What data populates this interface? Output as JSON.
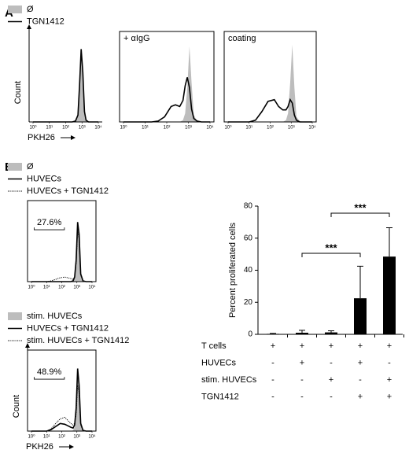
{
  "panels": [
    "A",
    "B"
  ],
  "chart_data": [
    {
      "type": "histogram-overlay",
      "ylabel": "Count",
      "xlabel": "PKH26",
      "log_x": true,
      "x": [
        1,
        3.2,
        10,
        20,
        40,
        79,
        158,
        251,
        398,
        562,
        708,
        891,
        1122,
        1413,
        1778,
        2512,
        3981,
        10000
      ],
      "xlim": [
        1,
        10000
      ],
      "ylim": [
        0,
        100
      ],
      "xticks": [
        {
          "value": 1,
          "label": "10⁰"
        },
        {
          "value": 10,
          "label": "10¹"
        },
        {
          "value": 100,
          "label": "10²"
        },
        {
          "value": 1000,
          "label": "10³"
        },
        {
          "value": 10000,
          "label": "10⁴"
        }
      ],
      "series": [
        {
          "name": "Ø",
          "color": "#bdbdbd",
          "fill": true,
          "values": [
            0,
            0,
            0,
            0,
            0,
            0,
            0,
            0,
            1,
            8,
            40,
            80,
            55,
            12,
            2,
            0,
            0,
            0
          ]
        },
        {
          "name": "TGN1412",
          "color": "#000000",
          "dash": "solid",
          "values": [
            0,
            0,
            0,
            0,
            0,
            0,
            0,
            0,
            1,
            8,
            42,
            85,
            58,
            12,
            2,
            0,
            0,
            0
          ]
        }
      ]
    },
    {
      "type": "histogram-overlay",
      "annotation": "+ αIgG",
      "log_x": true,
      "x": [
        1,
        3.2,
        10,
        20,
        40,
        79,
        158,
        251,
        398,
        562,
        708,
        891,
        1122,
        1413,
        1778,
        2512,
        3981,
        10000
      ],
      "xlim": [
        1,
        10000
      ],
      "ylim": [
        0,
        100
      ],
      "xticks": [
        {
          "value": 1,
          "label": "10⁰"
        },
        {
          "value": 10,
          "label": "10¹"
        },
        {
          "value": 100,
          "label": "10²"
        },
        {
          "value": 1000,
          "label": "10³"
        },
        {
          "value": 10000,
          "label": "10⁴"
        }
      ],
      "series": [
        {
          "color": "#bdbdbd",
          "fill": true,
          "values": [
            0,
            0,
            0,
            0,
            0,
            0,
            0,
            0,
            0,
            2,
            10,
            40,
            88,
            45,
            8,
            1,
            0,
            0
          ]
        },
        {
          "color": "#000000",
          "dash": "solid",
          "values": [
            0,
            0,
            0,
            0,
            1,
            6,
            18,
            20,
            18,
            25,
            42,
            52,
            40,
            15,
            4,
            1,
            0,
            0
          ]
        }
      ]
    },
    {
      "type": "histogram-overlay",
      "annotation": "coating",
      "log_x": true,
      "x": [
        1,
        3.2,
        10,
        20,
        40,
        79,
        158,
        251,
        398,
        562,
        708,
        891,
        1122,
        1413,
        1778,
        2512,
        3981,
        10000
      ],
      "xlim": [
        1,
        10000
      ],
      "ylim": [
        0,
        100
      ],
      "xticks": [
        {
          "value": 1,
          "label": "10⁰"
        },
        {
          "value": 10,
          "label": "10¹"
        },
        {
          "value": 100,
          "label": "10²"
        },
        {
          "value": 1000,
          "label": "10³"
        },
        {
          "value": 10000,
          "label": "10⁴"
        }
      ],
      "series": [
        {
          "color": "#bdbdbd",
          "fill": true,
          "values": [
            0,
            0,
            0,
            0,
            0,
            0,
            0,
            0,
            0,
            2,
            10,
            45,
            90,
            40,
            6,
            1,
            0,
            0
          ]
        },
        {
          "color": "#000000",
          "dash": "solid",
          "values": [
            0,
            0,
            0,
            2,
            12,
            24,
            26,
            18,
            14,
            14,
            18,
            26,
            22,
            8,
            2,
            0,
            0,
            0
          ]
        }
      ]
    },
    {
      "type": "histogram-overlay",
      "log_x": true,
      "x": [
        1,
        3.2,
        10,
        20,
        40,
        79,
        158,
        251,
        398,
        562,
        708,
        891,
        1122,
        1413,
        1778,
        2512,
        3981,
        10000
      ],
      "xlim": [
        1,
        10000
      ],
      "ylim": [
        0,
        100
      ],
      "xticks": [
        {
          "value": 1,
          "label": "10⁰"
        },
        {
          "value": 10,
          "label": "10¹"
        },
        {
          "value": 100,
          "label": "10²"
        },
        {
          "value": 1000,
          "label": "10³"
        },
        {
          "value": 10000,
          "label": "10⁴"
        }
      ],
      "gate": {
        "value": 27.6,
        "label": "27.6%",
        "range": [
          1.5,
          150
        ]
      },
      "series": [
        {
          "name": "Ø",
          "color": "#bdbdbd",
          "fill": true,
          "values": [
            0,
            0,
            0,
            0,
            0,
            0,
            0,
            0,
            0,
            1,
            5,
            25,
            70,
            60,
            10,
            1,
            0,
            0
          ]
        },
        {
          "name": "HUVECs",
          "color": "#000000",
          "dash": "solid",
          "values": [
            0,
            0,
            0,
            0,
            0,
            0,
            0,
            0,
            0,
            1,
            6,
            28,
            78,
            62,
            10,
            1,
            0,
            0
          ]
        },
        {
          "name": "HUVECs + TGN1412",
          "color": "#000000",
          "dash": "dotted",
          "values": [
            0,
            0,
            0,
            1,
            3,
            5,
            6,
            5,
            4,
            3,
            6,
            24,
            66,
            56,
            9,
            1,
            0,
            0
          ]
        }
      ]
    },
    {
      "type": "histogram-overlay",
      "ylabel": "Count",
      "xlabel": "PKH26",
      "log_x": true,
      "x": [
        1,
        3.2,
        10,
        20,
        40,
        79,
        158,
        251,
        398,
        562,
        708,
        891,
        1122,
        1413,
        1778,
        2512,
        3981,
        10000
      ],
      "xlim": [
        1,
        10000
      ],
      "ylim": [
        0,
        100
      ],
      "xticks": [
        {
          "value": 1,
          "label": "10⁰"
        },
        {
          "value": 10,
          "label": "10¹"
        },
        {
          "value": 100,
          "label": "10²"
        },
        {
          "value": 1000,
          "label": "10³"
        },
        {
          "value": 10000,
          "label": "10⁴"
        }
      ],
      "gate": {
        "value": 48.9,
        "label": "48.9%",
        "range": [
          1.5,
          150
        ]
      },
      "series": [
        {
          "name": "stim. HUVECs",
          "color": "#bdbdbd",
          "fill": true,
          "values": [
            0,
            0,
            0,
            0,
            0,
            0,
            0,
            0,
            0,
            1,
            5,
            25,
            72,
            58,
            10,
            1,
            0,
            0
          ]
        },
        {
          "name": "HUVECs + TGN1412",
          "color": "#000000",
          "dash": "solid",
          "values": [
            0,
            0,
            0,
            2,
            6,
            10,
            9,
            7,
            5,
            4,
            8,
            30,
            82,
            60,
            10,
            1,
            0,
            0
          ]
        },
        {
          "name": "stim. HUVECs + TGN1412",
          "color": "#000000",
          "dash": "dotted",
          "values": [
            0,
            0,
            0,
            3,
            10,
            16,
            18,
            14,
            10,
            8,
            10,
            22,
            60,
            50,
            8,
            1,
            0,
            0
          ]
        }
      ]
    },
    {
      "type": "bar",
      "ylabel": "Percent proliferated cells",
      "color": "#000000",
      "values": [
        0.3,
        1,
        1.2,
        22.5,
        48.5
      ],
      "errors": [
        0.3,
        1.5,
        1,
        20,
        18
      ],
      "ylim": [
        0,
        80
      ],
      "yticks": [
        0,
        20,
        40,
        60,
        80
      ],
      "conditions": [
        {
          "label": "T cells",
          "marks": [
            "+",
            "+",
            "+",
            "+",
            "+"
          ]
        },
        {
          "label": "HUVECs",
          "marks": [
            "-",
            "+",
            "-",
            "+",
            "-"
          ]
        },
        {
          "label": "stim. HUVECs",
          "marks": [
            "-",
            "-",
            "+",
            "-",
            "+"
          ]
        },
        {
          "label": "TGN1412",
          "marks": [
            "-",
            "-",
            "-",
            "+",
            "+"
          ]
        }
      ],
      "significance": [
        {
          "text": "***",
          "from": 1,
          "to": 3
        },
        {
          "text": "***",
          "from": 2,
          "to": 4
        }
      ]
    }
  ]
}
